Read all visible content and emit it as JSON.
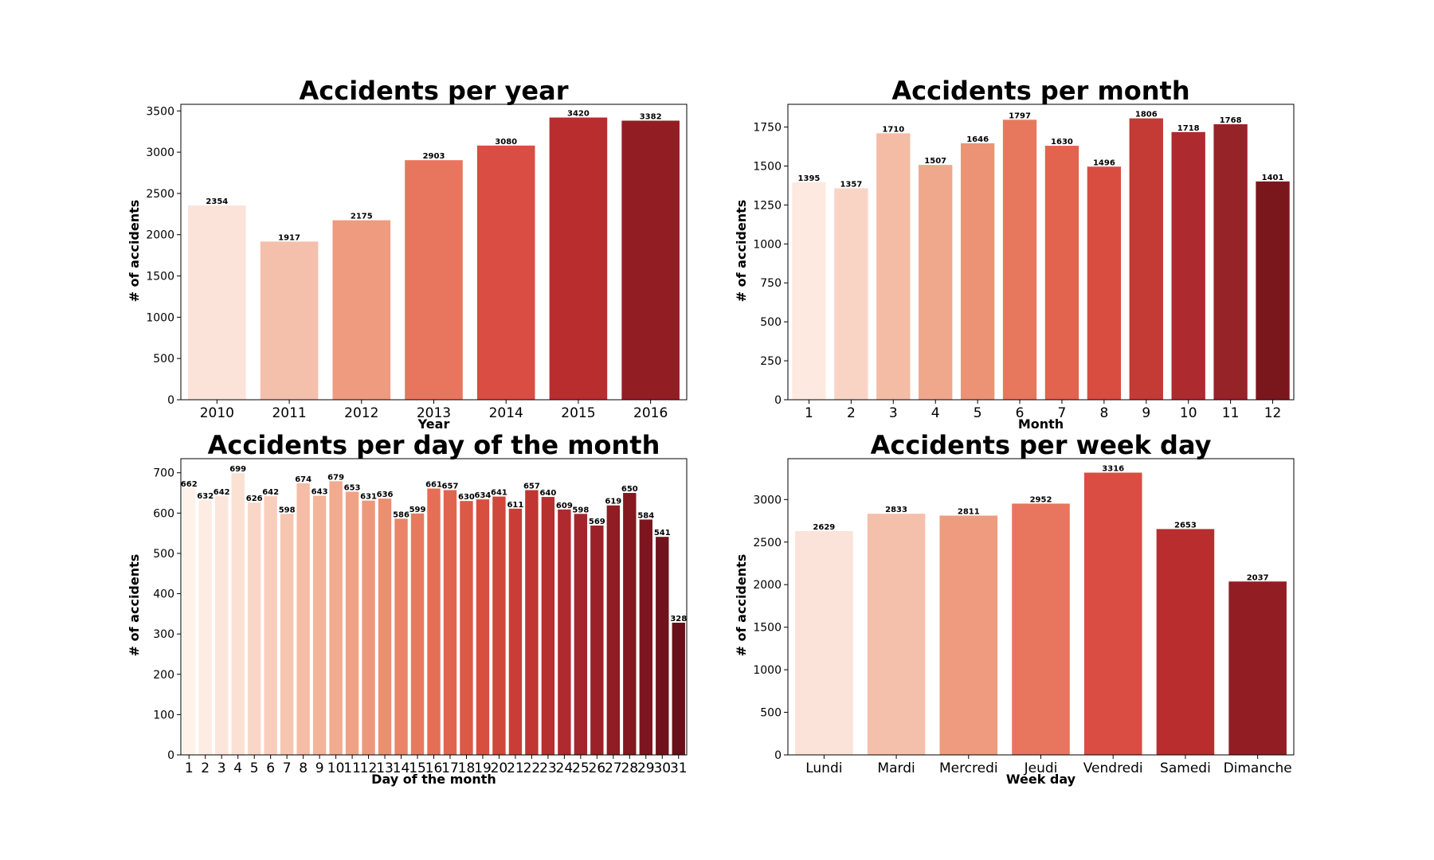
{
  "chart_data": [
    {
      "type": "bar",
      "title": "Accidents per year",
      "xlabel": "Year",
      "ylabel": "# of accidents",
      "categories": [
        "2010",
        "2011",
        "2012",
        "2013",
        "2014",
        "2015",
        "2016"
      ],
      "values": [
        2354,
        1917,
        2175,
        2903,
        3080,
        3420,
        3382
      ],
      "ylim": [
        0,
        3580
      ],
      "yticks": [
        0,
        500,
        1000,
        1500,
        2000,
        2500,
        3000,
        3500
      ],
      "colors": [
        "#fbe3d9",
        "#f5c0ab",
        "#ef9b7f",
        "#e8755e",
        "#d94d42",
        "#b92d2f",
        "#921e23"
      ],
      "grid": false,
      "legend": "none"
    },
    {
      "type": "bar",
      "title": "Accidents per month",
      "xlabel": "Month",
      "ylabel": "# of accidents",
      "categories": [
        "1",
        "2",
        "3",
        "4",
        "5",
        "6",
        "7",
        "8",
        "9",
        "10",
        "11",
        "12"
      ],
      "values": [
        1395,
        1357,
        1710,
        1507,
        1646,
        1797,
        1630,
        1496,
        1806,
        1718,
        1768,
        1401
      ],
      "ylim": [
        0,
        1896
      ],
      "yticks": [
        0,
        250,
        500,
        750,
        1000,
        1250,
        1500,
        1750
      ],
      "colors": [
        "#fde9df",
        "#f9d4c4",
        "#f4bca4",
        "#f0a88c",
        "#ec9376",
        "#e7785e",
        "#e2634e",
        "#d84d40",
        "#c43a34",
        "#ad2b2f",
        "#952328",
        "#7a171d"
      ],
      "grid": false,
      "legend": "none"
    },
    {
      "type": "bar",
      "title": "Accidents per day of the month",
      "xlabel": "Day of the month",
      "ylabel": "# of accidents",
      "categories": [
        "1",
        "2",
        "3",
        "4",
        "5",
        "6",
        "7",
        "8",
        "9",
        "10",
        "11",
        "12",
        "13",
        "14",
        "15",
        "16",
        "17",
        "18",
        "19",
        "20",
        "21",
        "22",
        "23",
        "24",
        "25",
        "26",
        "27",
        "28",
        "29",
        "30",
        "31"
      ],
      "values": [
        662,
        632,
        642,
        699,
        626,
        642,
        598,
        674,
        643,
        679,
        653,
        631,
        636,
        586,
        599,
        661,
        657,
        630,
        634,
        641,
        611,
        657,
        640,
        609,
        598,
        569,
        619,
        650,
        584,
        541,
        328
      ],
      "ylim": [
        0,
        735
      ],
      "yticks": [
        0,
        100,
        200,
        300,
        400,
        500,
        600,
        700
      ],
      "color_ramp": [
        "#fff2eb",
        "#fbe0d4",
        "#f6c6b1",
        "#f2ab8f",
        "#ec8f71",
        "#e46f55",
        "#d7503f",
        "#c13533",
        "#a4252b",
        "#861820",
        "#67101a"
      ],
      "grid": false,
      "legend": "none"
    },
    {
      "type": "bar",
      "title": "Accidents per week day",
      "xlabel": "Week day",
      "ylabel": "# of accidents",
      "categories": [
        "Lundi",
        "Mardi",
        "Mercredi",
        "Jeudi",
        "Vendredi",
        "Samedi",
        "Dimanche"
      ],
      "values": [
        2629,
        2833,
        2811,
        2952,
        3316,
        2653,
        2037
      ],
      "ylim": [
        0,
        3480
      ],
      "yticks": [
        0,
        500,
        1000,
        1500,
        2000,
        2500,
        3000
      ],
      "colors": [
        "#fbe3d9",
        "#f5c0ab",
        "#ef9b7f",
        "#e8755e",
        "#d94d42",
        "#b92d2f",
        "#921e23"
      ],
      "grid": false,
      "legend": "none"
    }
  ]
}
